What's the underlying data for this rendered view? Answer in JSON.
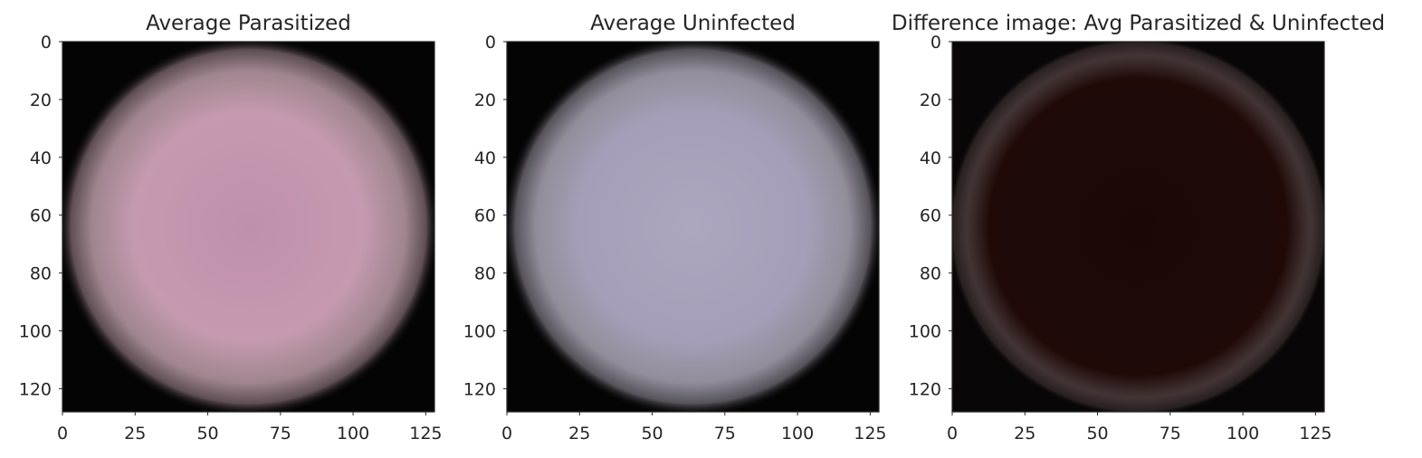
{
  "chart_data": [
    {
      "type": "image",
      "title": "Average Parasitized",
      "image_size": [
        128,
        128
      ],
      "xlim": [
        0,
        128
      ],
      "ylim": [
        128,
        0
      ],
      "xticks": [
        0,
        25,
        50,
        75,
        100,
        125
      ],
      "yticks": [
        0,
        20,
        40,
        60,
        80,
        100,
        120
      ],
      "grid": false,
      "colors": {
        "background": "#050404",
        "cell_center": "#bf90ab",
        "cell_mid": "#c59ab0",
        "cell_edge": "#a88c96"
      }
    },
    {
      "type": "image",
      "title": "Average Uninfected",
      "image_size": [
        128,
        128
      ],
      "xlim": [
        0,
        128
      ],
      "ylim": [
        128,
        0
      ],
      "xticks": [
        0,
        25,
        50,
        75,
        100,
        125
      ],
      "yticks": [
        0,
        20,
        40,
        60,
        80,
        100,
        120
      ],
      "grid": false,
      "colors": {
        "background": "#040404",
        "cell_center": "#aca6bf",
        "cell_mid": "#a59eb8",
        "cell_edge": "#9a94a2"
      }
    },
    {
      "type": "image",
      "title": "Difference image: Avg Parasitized & Uninfected",
      "image_size": [
        128,
        128
      ],
      "xlim": [
        0,
        128
      ],
      "ylim": [
        128,
        0
      ],
      "xticks": [
        0,
        25,
        50,
        75,
        100,
        125
      ],
      "yticks": [
        0,
        20,
        40,
        60,
        80,
        100,
        120
      ],
      "grid": false,
      "colors": {
        "background": "#080606",
        "cell_center": "#1a0807",
        "cell_mid": "#1f0a08",
        "cell_edge": "#4a3a3a"
      }
    }
  ]
}
